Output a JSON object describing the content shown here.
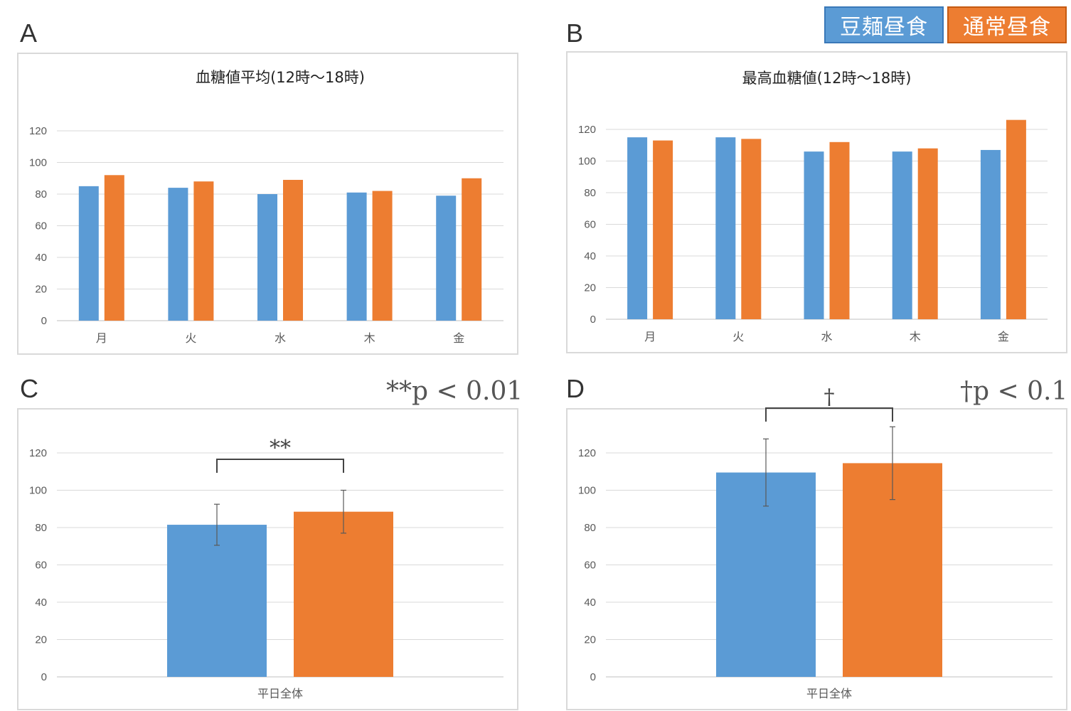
{
  "legend": [
    {
      "label": "豆麺昼食",
      "color": "#5b9bd5"
    },
    {
      "label": "通常昼食",
      "color": "#ed7d31"
    }
  ],
  "panels": {
    "a": {
      "letter": "A"
    },
    "b": {
      "letter": "B"
    },
    "c": {
      "letter": "C",
      "note": "**p < 0.01",
      "marker": "**"
    },
    "d": {
      "letter": "D",
      "note": "†p < 0.1",
      "marker": "†"
    }
  },
  "chart_data": [
    {
      "id": "a",
      "type": "bar",
      "title": "血糖値平均(12時〜18時)",
      "categories": [
        "月",
        "火",
        "水",
        "木",
        "金"
      ],
      "series": [
        {
          "name": "豆麺昼食",
          "values": [
            85,
            84,
            80,
            81,
            79
          ]
        },
        {
          "name": "通常昼食",
          "values": [
            92,
            88,
            89,
            82,
            90
          ]
        }
      ],
      "ylim": [
        0,
        120
      ],
      "yticks": [
        0,
        20,
        40,
        60,
        80,
        100,
        120
      ]
    },
    {
      "id": "b",
      "type": "bar",
      "title": "最高血糖値(12時〜18時)",
      "categories": [
        "月",
        "火",
        "水",
        "木",
        "金"
      ],
      "series": [
        {
          "name": "豆麺昼食",
          "values": [
            115,
            115,
            106,
            106,
            107
          ]
        },
        {
          "name": "通常昼食",
          "values": [
            113,
            114,
            112,
            108,
            126
          ]
        }
      ],
      "ylim": [
        0,
        120
      ],
      "yticks": [
        0,
        20,
        40,
        60,
        80,
        100,
        120
      ]
    },
    {
      "id": "c",
      "type": "bar",
      "title": "",
      "categories": [
        "平日全体"
      ],
      "series": [
        {
          "name": "豆麺昼食",
          "values": [
            81.5
          ],
          "error": [
            11
          ]
        },
        {
          "name": "通常昼食",
          "values": [
            88.5
          ],
          "error": [
            11.5
          ]
        }
      ],
      "ylim": [
        0,
        120
      ],
      "yticks": [
        0,
        20,
        40,
        60,
        80,
        100,
        120
      ],
      "significance": "**"
    },
    {
      "id": "d",
      "type": "bar",
      "title": "",
      "categories": [
        "平日全体"
      ],
      "series": [
        {
          "name": "豆麺昼食",
          "values": [
            109.5
          ],
          "error": [
            18
          ]
        },
        {
          "name": "通常昼食",
          "values": [
            114.5
          ],
          "error": [
            19.5
          ]
        }
      ],
      "ylim": [
        0,
        120
      ],
      "yticks": [
        0,
        20,
        40,
        60,
        80,
        100,
        120
      ],
      "significance": "†"
    }
  ]
}
